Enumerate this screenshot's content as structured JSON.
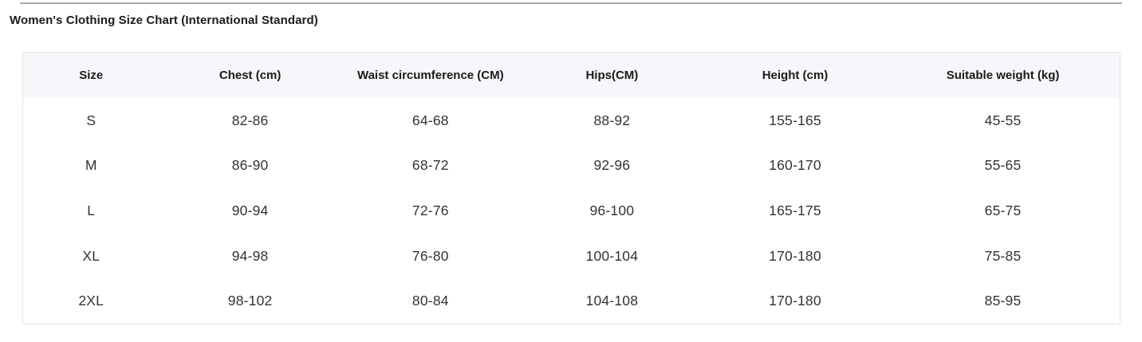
{
  "page": {
    "title": "Women's Clothing Size Chart (International Standard)"
  },
  "chart_data": {
    "type": "table",
    "title": "Women's Clothing Size Chart (International Standard)",
    "columns": [
      "Size",
      "Chest (cm)",
      "Waist circumference (CM)",
      "Hips(CM)",
      "Height (cm)",
      "Suitable weight (kg)"
    ],
    "rows": [
      [
        "S",
        "82-86",
        "64-68",
        "88-92",
        "155-165",
        "45-55"
      ],
      [
        "M",
        "86-90",
        "68-72",
        "92-96",
        "160-170",
        "55-65"
      ],
      [
        "L",
        "90-94",
        "72-76",
        "96-100",
        "165-175",
        "65-75"
      ],
      [
        "XL",
        "94-98",
        "76-80",
        "100-104",
        "170-180",
        "75-85"
      ],
      [
        "2XL",
        "98-102",
        "80-84",
        "104-108",
        "170-180",
        "85-95"
      ]
    ]
  },
  "colors": {
    "header_background": "#f5f7fa",
    "table_border": "#e4e4e4",
    "top_rule": "#a9a9a9",
    "body_text": "#333333",
    "title_text": "#1b1b1b"
  }
}
